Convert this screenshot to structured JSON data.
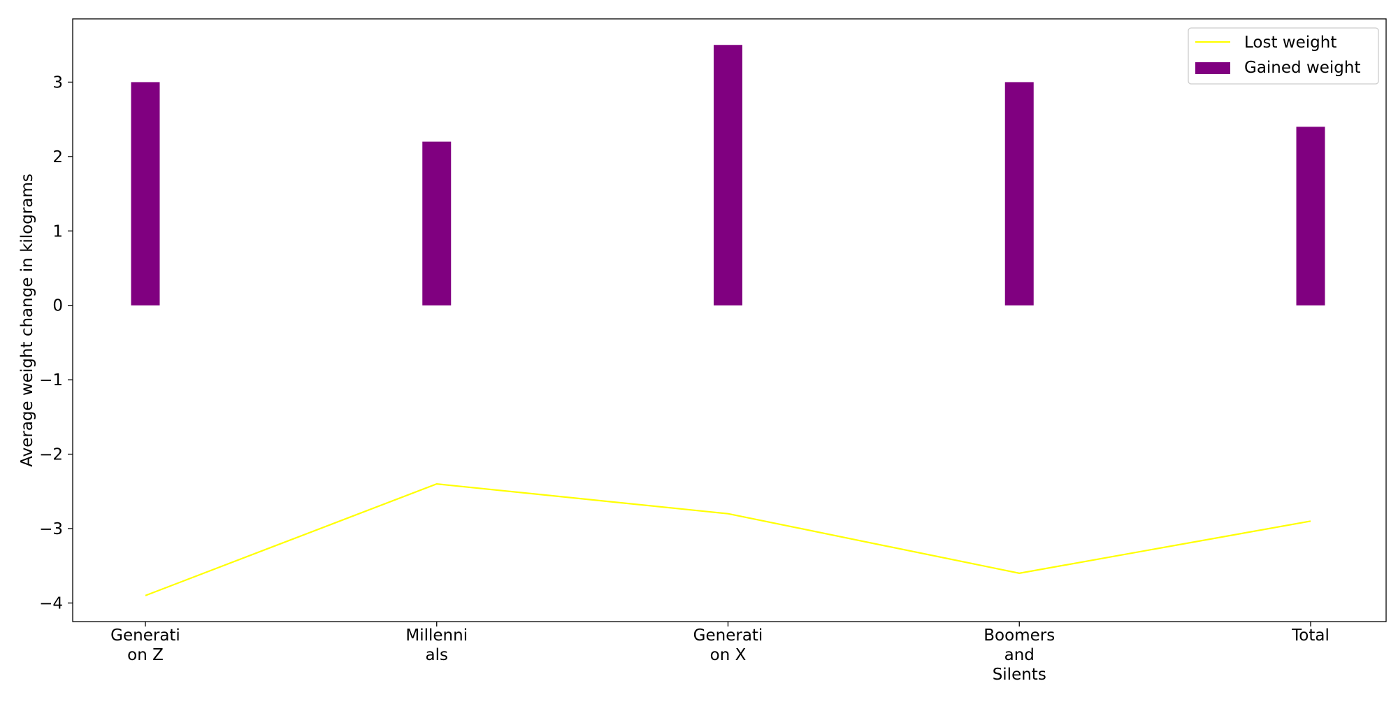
{
  "chart_data": {
    "type": "bar",
    "categories": [
      [
        "Generati",
        "on Z"
      ],
      [
        "Millenni",
        "als"
      ],
      [
        "Generati",
        "on X"
      ],
      [
        "Boomers",
        "and",
        "Silents"
      ],
      [
        "Total"
      ]
    ],
    "series": [
      {
        "name": "Gained weight",
        "type": "bar",
        "color": "#800080",
        "values": [
          3.0,
          2.2,
          3.5,
          3.0,
          2.4
        ]
      },
      {
        "name": "Lost weight",
        "type": "line",
        "color": "#ffff00",
        "values": [
          -3.9,
          -2.4,
          -2.8,
          -3.6,
          -2.9
        ]
      }
    ],
    "title": "",
    "xlabel": "",
    "ylabel": "Average weight change in kilograms",
    "ylim": [
      -4.25,
      3.85
    ],
    "yticks": [
      3,
      2,
      1,
      0,
      -1,
      -2,
      -3,
      -4
    ],
    "ytick_labels": [
      "3",
      "2",
      "1",
      "0",
      "−1",
      "−2",
      "−3",
      "−4"
    ],
    "grid": false,
    "legend_position": "top-right",
    "legend": [
      {
        "label": "Lost weight",
        "kind": "line",
        "color": "#ffff00"
      },
      {
        "label": "Gained weight",
        "kind": "patch",
        "color": "#800080"
      }
    ]
  }
}
